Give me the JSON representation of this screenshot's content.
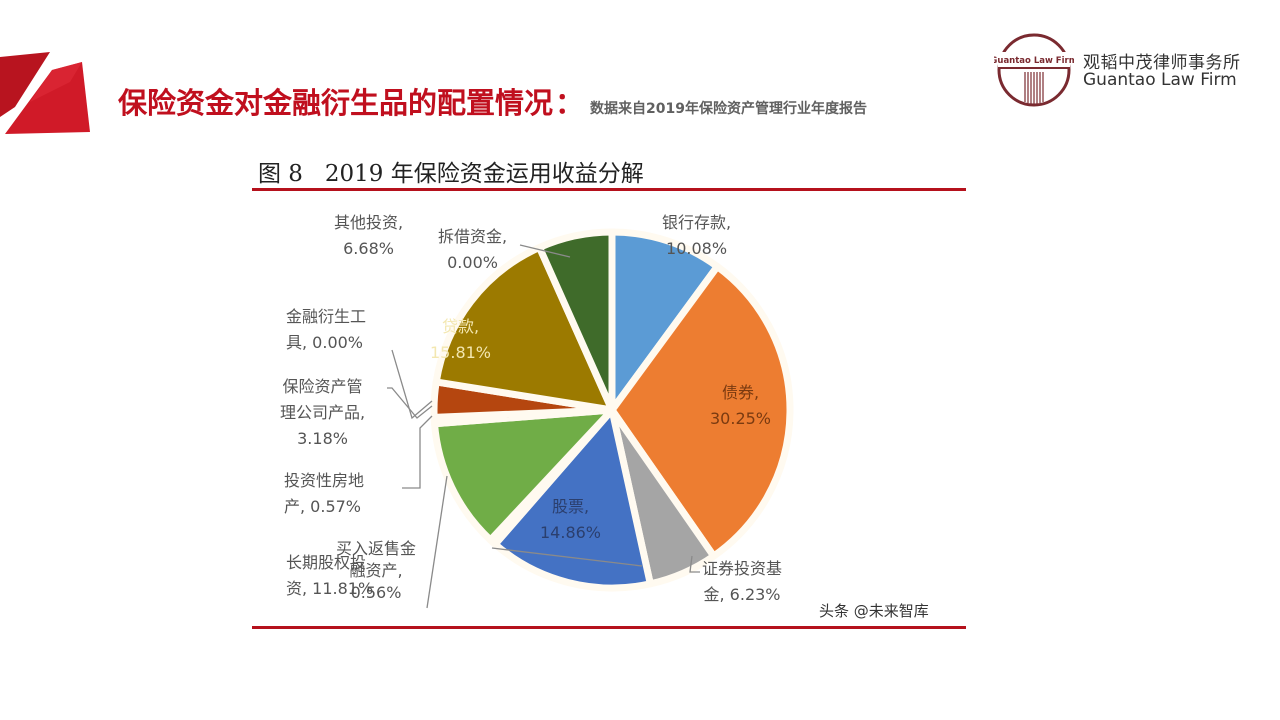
{
  "header": {
    "title": "保险资金对金融衍生品的配置情况",
    "colon": "：",
    "subtitle": "数据来自2019年保险资产管理行业年度报告",
    "accent_color": "#c00f1e"
  },
  "logo": {
    "emblem_text": "Guantao Law Firm",
    "name_cn": "观韬中茂律师事务所",
    "name_en": "Guantao Law Firm",
    "color": "#7a2a30"
  },
  "figure": {
    "title": "图 8   2019 年保险资金运用收益分解",
    "watermark": "头条 @未来智库"
  },
  "chart_data": {
    "type": "pie",
    "title": "图 8 2019 年保险资金运用收益分解",
    "start_angle": "12 o'clock, clockwise",
    "slices": [
      {
        "label": "银行存款",
        "value": 10.08,
        "display": "银行存款,\n10.08%",
        "color": "#5b9bd5"
      },
      {
        "label": "债券",
        "value": 30.25,
        "display": "债券,\n30.25%",
        "color": "#ed7d31"
      },
      {
        "label": "证券投资基金",
        "value": 6.23,
        "display": "证券投资基金, 6.23%",
        "color": "#a5a5a5"
      },
      {
        "label": "股票",
        "value": 14.86,
        "display": "股票,\n14.86%",
        "color": "#4472c4"
      },
      {
        "label": "买入返售金融资产",
        "value": 0.56,
        "display": "买入返售金融资产, 0.56%",
        "color": "#264478"
      },
      {
        "label": "长期股权投资",
        "value": 11.81,
        "display": "长期股权投资, 11.81%",
        "color": "#70ad47"
      },
      {
        "label": "投资性房地产",
        "value": 0.57,
        "display": "投资性房地产, 0.57%",
        "color": "#9e480e"
      },
      {
        "label": "保险资产管理公司产品",
        "value": 3.18,
        "display": "保险资产管理公司产品, 3.18%",
        "color": "#b5460f"
      },
      {
        "label": "金融衍生工具",
        "value": 0.0,
        "display": "金融衍生工具, 0.00%",
        "color": "#636363"
      },
      {
        "label": "贷款",
        "value": 15.81,
        "display": "贷款,\n15.81%",
        "color": "#9c7a00"
      },
      {
        "label": "拆借资金",
        "value": 0.0,
        "display": "拆借资金, 0.00%",
        "color": "#2e5f8a"
      },
      {
        "label": "其他投资",
        "value": 6.68,
        "display": "其他投资, 6.68%",
        "color": "#3f6b2a"
      }
    ]
  },
  "labels": {
    "bank": [
      "银行存款,",
      "10.08%"
    ],
    "bond": [
      "债券,",
      "30.25%"
    ],
    "fund": [
      "证券投资基",
      "金, 6.23%"
    ],
    "stock": [
      "股票,",
      "14.86%"
    ],
    "repo": [
      "买入返售金",
      "融资产,",
      "0.56%"
    ],
    "equity": [
      "长期股权投",
      "资, 11.81%"
    ],
    "realestate": [
      "投资性房地",
      "产, 0.57%"
    ],
    "amc": [
      "保险资产管",
      "理公司产品,",
      "3.18%"
    ],
    "deriv": [
      "金融衍生工",
      "具, 0.00%"
    ],
    "loan": [
      "贷款,",
      "15.81%"
    ],
    "lending": [
      "拆借资金,",
      "0.00%"
    ],
    "other": [
      "其他投资,",
      "6.68%"
    ]
  }
}
